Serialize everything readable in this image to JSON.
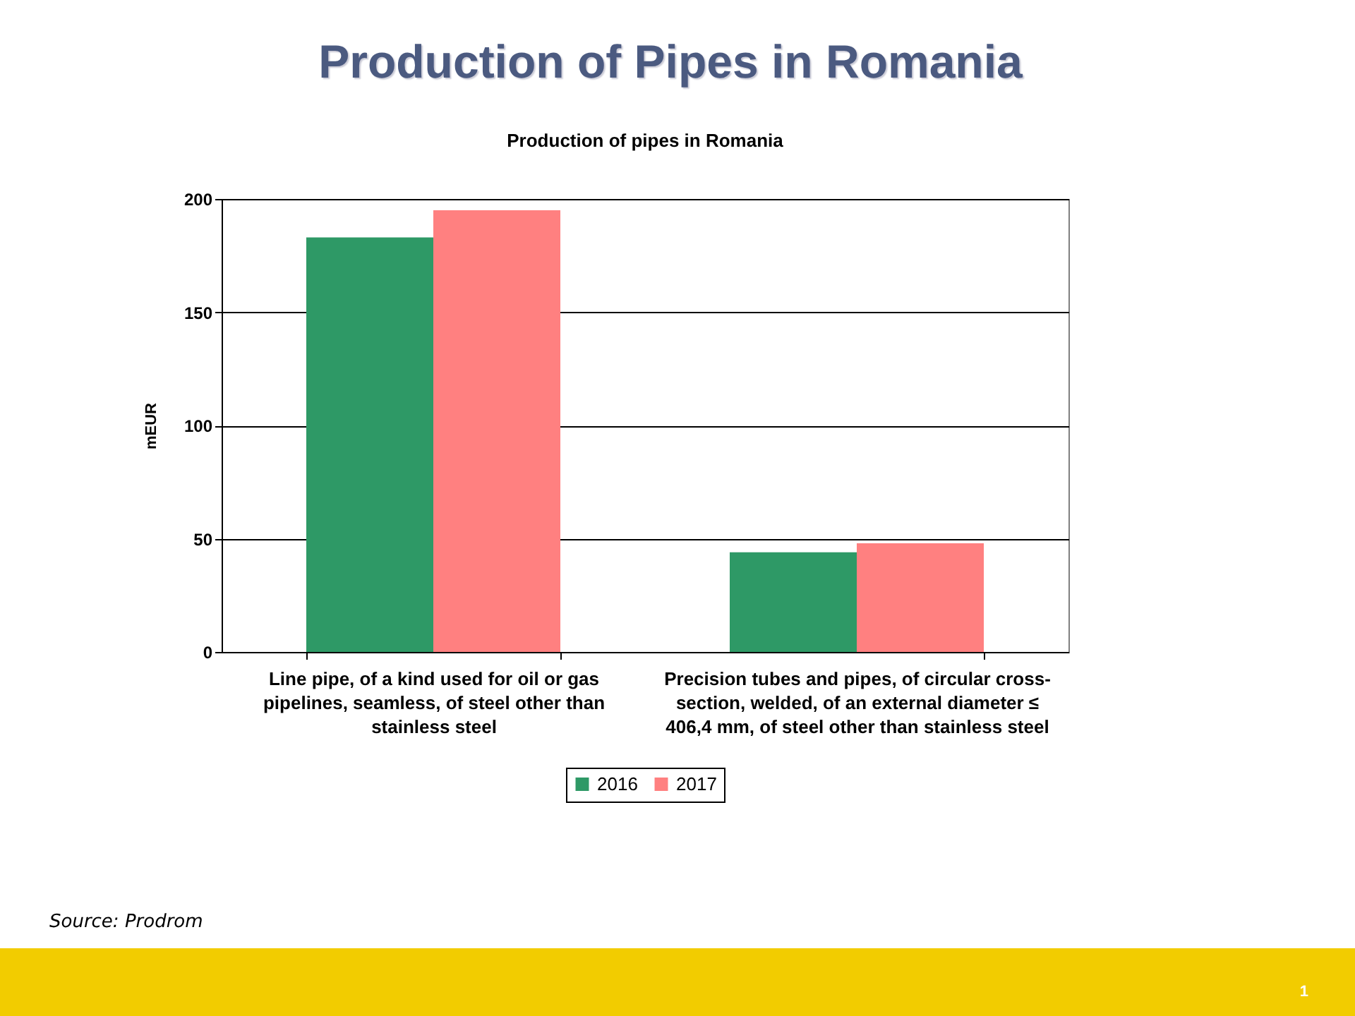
{
  "chart_data": {
    "type": "bar",
    "title": "Production of Pipes in Romania",
    "subtitle": "Production of pipes in Romania",
    "ylabel": "mEUR",
    "categories": [
      "Line pipe, of a kind used for oil or gas pipelines, seamless, of steel other than stainless steel",
      "Precision tubes and pipes, of circular cross-section, welded, of an external diameter ≤ 406,4 mm, of steel other than stainless steel"
    ],
    "series": [
      {
        "name": "2016",
        "color": "#2e9966",
        "values": [
          183,
          44
        ]
      },
      {
        "name": "2017",
        "color": "#ff8080",
        "values": [
          195,
          48
        ]
      }
    ],
    "ylim": [
      0,
      200
    ],
    "yticks": [
      0,
      50,
      100,
      150,
      200
    ],
    "grid": "y",
    "legend": "bottom",
    "annotations": [
      "Source: Prodrom",
      "1"
    ]
  }
}
